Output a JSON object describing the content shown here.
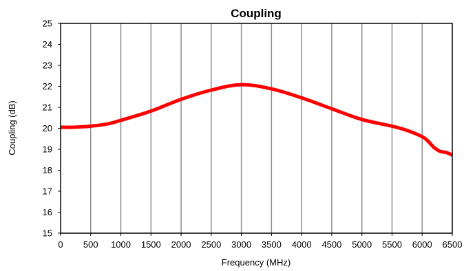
{
  "chart_data": {
    "type": "line",
    "title": "Coupling",
    "xlabel": "Frequency (MHz)",
    "ylabel": "Coupling (dB)",
    "xlim": [
      0,
      6500
    ],
    "ylim": [
      15,
      25
    ],
    "x_ticks": [
      0,
      500,
      1000,
      1500,
      2000,
      2500,
      3000,
      3500,
      4000,
      4500,
      5000,
      5500,
      6000,
      6500
    ],
    "y_ticks": [
      15,
      16,
      17,
      18,
      19,
      20,
      21,
      22,
      23,
      24,
      25
    ],
    "grid": {
      "vertical": true,
      "horizontal": false
    },
    "legend": "none",
    "series": [
      {
        "color": "#ff0000",
        "x": [
          0,
          200,
          500,
          800,
          1000,
          1500,
          2000,
          2500,
          3000,
          3500,
          4000,
          4500,
          5000,
          5500,
          5750,
          6000,
          6100,
          6200,
          6300,
          6400,
          6500
        ],
        "y": [
          20.05,
          20.05,
          20.1,
          20.22,
          20.38,
          20.82,
          21.38,
          21.82,
          22.08,
          21.88,
          21.45,
          20.93,
          20.42,
          20.1,
          19.9,
          19.6,
          19.38,
          19.08,
          18.9,
          18.85,
          18.72
        ]
      }
    ]
  }
}
